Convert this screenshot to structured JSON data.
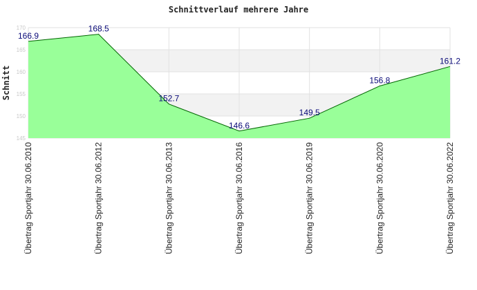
{
  "chart_data": {
    "type": "area",
    "title": "Schnittverlauf mehrere Jahre",
    "xlabel": "",
    "ylabel": "Schnitt",
    "categories": [
      "Übertrag Sportjahr 30.06.2010",
      "Übertrag Sportjahr 30.06.2012",
      "Übertrag Sportjahr 30.06.2013",
      "Übertrag Sportjahr 30.06.2016",
      "Übertrag Sportjahr 30.06.2019",
      "Übertrag Sportjahr 30.06.2020",
      "Übertrag Sportjahr 30.06.2022"
    ],
    "values": [
      166.9,
      168.5,
      152.7,
      146.6,
      149.5,
      156.8,
      161.2
    ],
    "data_labels": [
      "166.9",
      "168.5",
      "152.7",
      "146.6",
      "149.5",
      "156.8",
      "161.2"
    ],
    "yticks": [
      145,
      150,
      155,
      160,
      165,
      170
    ],
    "ylim": [
      145,
      170
    ],
    "grid": true,
    "colors": {
      "fill": "#99ff99",
      "line": "#006400",
      "band": "#f2f2f2",
      "grid": "#e2e2e2",
      "data_label": "#0a0a78"
    }
  }
}
